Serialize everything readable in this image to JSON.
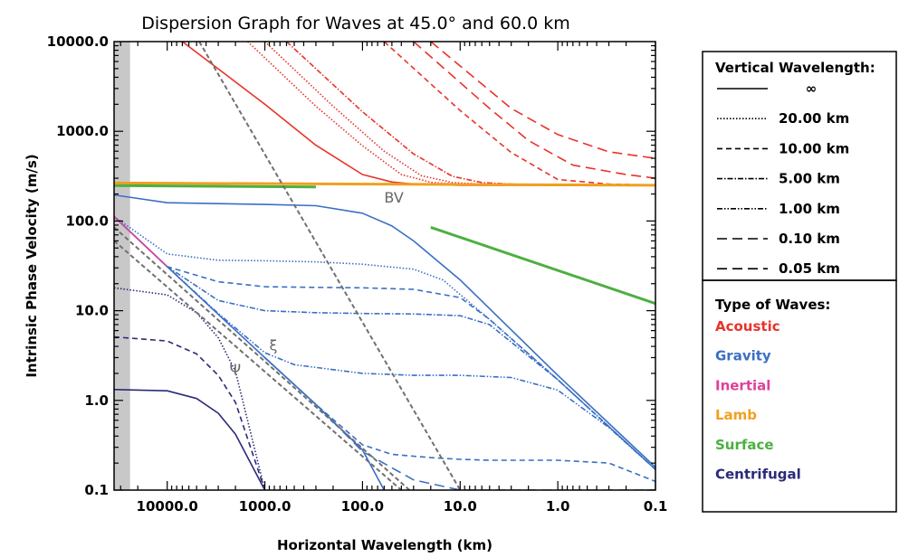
{
  "chart_data": {
    "type": "line",
    "title": "Dispersion Graph for Waves at 45.0° and 60.0 km",
    "xlabel": "Horizontal Wavelength (km)",
    "ylabel": "Intrinsic Phase Velocity (m/s)",
    "x_scale": "log",
    "y_scale": "log",
    "x_reversed": true,
    "xlim": [
      35000,
      0.1
    ],
    "ylim": [
      0.1,
      10000
    ],
    "x_ticks": [
      "10000.0",
      "1000.0",
      "100.0",
      "10.0",
      "1.0",
      "0.1"
    ],
    "x_tick_values": [
      10000,
      1000,
      100,
      10,
      1,
      0.1
    ],
    "y_ticks": [
      "10000.0",
      "1000.0",
      "100.0",
      "10.0",
      "1.0",
      "0.1"
    ],
    "y_tick_values": [
      10000,
      1000,
      100,
      10,
      1,
      0.1
    ],
    "shaded_x_range": [
      35000,
      24000
    ],
    "colors": {
      "acoustic": "#e8332a",
      "gravity": "#3a6fc4",
      "inertial": "#e0409a",
      "lamb": "#f0a020",
      "surface": "#4cb040",
      "centrifugal": "#2a2a78",
      "reference": "#707070",
      "shade": "#c8c8c8"
    },
    "legend_vertical": {
      "title": "Vertical Wavelength:",
      "entries": [
        {
          "label": "∞",
          "dash": "solid"
        },
        {
          "label": "20.00 km",
          "dash": "dotted"
        },
        {
          "label": "10.00 km",
          "dash": "dashed"
        },
        {
          "label": "5.00 km",
          "dash": "dashdot"
        },
        {
          "label": "1.00 km",
          "dash": "dashdotdot"
        },
        {
          "label": "0.10 km",
          "dash": "longdash"
        },
        {
          "label": "0.05 km",
          "dash": "longdash"
        }
      ]
    },
    "legend_types": {
      "title": "Type of Waves:",
      "entries": [
        {
          "label": "Acoustic",
          "color": "#e8332a"
        },
        {
          "label": "Gravity",
          "color": "#3a6fc4"
        },
        {
          "label": "Inertial",
          "color": "#e0409a"
        },
        {
          "label": "Lamb",
          "color": "#f0a020"
        },
        {
          "label": "Surface",
          "color": "#4cb040"
        },
        {
          "label": "Centrifugal",
          "color": "#2a2a78"
        }
      ]
    },
    "annotations": [
      {
        "text": "BV",
        "x": 60,
        "y": 160
      },
      {
        "text": "ξ",
        "x": 900,
        "y": 3.6
      },
      {
        "text": "Ψ",
        "x": 2300,
        "y": 1.95
      }
    ],
    "series": [
      {
        "type": "acoustic",
        "dash": "solid",
        "x": [
          7000,
          1000,
          300,
          100,
          50,
          30,
          10,
          1,
          0.1
        ],
        "y": [
          10000,
          2000,
          700,
          330,
          272,
          258,
          250,
          250,
          250
        ]
      },
      {
        "type": "acoustic",
        "dash": "dotted",
        "x": [
          1500,
          300,
          100,
          40,
          20,
          10,
          1,
          0.1
        ],
        "y": [
          10000,
          1900,
          690,
          330,
          270,
          256,
          250,
          250
        ]
      },
      {
        "type": "acoustic",
        "dash": "dotted",
        "x": [
          1000,
          200,
          60,
          25,
          12,
          5,
          1,
          0.1
        ],
        "y": [
          10000,
          1900,
          600,
          320,
          268,
          255,
          250,
          250
        ]
      },
      {
        "type": "acoustic",
        "dash": "dashdot",
        "x": [
          600,
          100,
          30,
          12,
          6,
          2,
          0.5,
          0.1
        ],
        "y": [
          10000,
          1650,
          560,
          315,
          268,
          252,
          250,
          250
        ]
      },
      {
        "type": "acoustic",
        "dash": "dashed",
        "x": [
          60,
          10,
          3,
          1,
          0.3,
          0.1
        ],
        "y": [
          10000,
          1700,
          580,
          290,
          258,
          252
        ]
      },
      {
        "type": "acoustic",
        "dash": "longdash",
        "x": [
          30,
          5,
          2,
          0.7,
          0.2,
          0.1
        ],
        "y": [
          10000,
          1800,
          790,
          420,
          330,
          300
        ]
      },
      {
        "type": "acoustic",
        "dash": "longdash",
        "x": [
          20,
          3,
          1,
          0.3,
          0.1
        ],
        "y": [
          10000,
          1800,
          920,
          590,
          500
        ]
      },
      {
        "type": "lamb",
        "dash": "solid",
        "x": [
          35000,
          0.1
        ],
        "y": [
          265,
          250
        ]
      },
      {
        "type": "surface",
        "dash": "solid",
        "x": [
          35000,
          300
        ],
        "y": [
          248,
          240
        ]
      },
      {
        "type": "surface",
        "dash": "solid",
        "x": [
          20,
          0.1
        ],
        "y": [
          85,
          12
        ]
      },
      {
        "type": "gravity",
        "dash": "solid",
        "x": [
          35000,
          10000,
          1000,
          300,
          100,
          50,
          30,
          10,
          1,
          0.1
        ],
        "y": [
          195,
          160,
          153,
          148,
          122,
          88,
          60,
          22,
          1.9,
          0.18
        ]
      },
      {
        "type": "gravity",
        "dash": "solid",
        "x": [
          35000,
          10000,
          3000,
          1000,
          300,
          100,
          60
        ],
        "y": [
          112,
          31,
          9.1,
          3.0,
          0.9,
          0.28,
          0.1
        ]
      },
      {
        "type": "gravity",
        "dash": "dotted",
        "x": [
          35000,
          10000,
          3000,
          1000,
          300,
          100,
          30,
          15,
          5,
          1,
          0.1
        ],
        "y": [
          112,
          43,
          36.5,
          36,
          35,
          33,
          29,
          22,
          8,
          1.7,
          0.17
        ]
      },
      {
        "type": "gravity",
        "dash": "dashed",
        "x": [
          35000,
          10000,
          3000,
          1000,
          300,
          100,
          30,
          10,
          5,
          1,
          0.1
        ],
        "y": [
          112,
          31,
          21,
          18.5,
          18.2,
          18,
          17.3,
          14,
          8,
          1.7,
          0.17
        ]
      },
      {
        "type": "gravity",
        "dash": "dashdot",
        "x": [
          35000,
          10000,
          3000,
          1000,
          300,
          100,
          30,
          10,
          5,
          1,
          0.1
        ],
        "y": [
          112,
          31,
          13,
          10,
          9.5,
          9.3,
          9.2,
          8.8,
          7,
          1.7,
          0.17
        ]
      },
      {
        "type": "gravity",
        "dash": "dashdotdot",
        "x": [
          35000,
          10000,
          3000,
          1000,
          500,
          100,
          30,
          10,
          3,
          1,
          0.3,
          0.1
        ],
        "y": [
          112,
          31,
          9.3,
          3.4,
          2.5,
          2.0,
          1.9,
          1.9,
          1.8,
          1.3,
          0.5,
          0.17
        ]
      },
      {
        "type": "gravity",
        "dash": "dashed",
        "x": [
          1000,
          300,
          100,
          50,
          20,
          10,
          5,
          1,
          0.3,
          0.1
        ],
        "y": [
          3.0,
          0.9,
          0.32,
          0.25,
          0.23,
          0.22,
          0.215,
          0.215,
          0.2,
          0.125
        ]
      },
      {
        "type": "gravity",
        "dash": "longdash",
        "x": [
          1000,
          300,
          100,
          30,
          10,
          3,
          1,
          0.3,
          0.1
        ],
        "y": [
          3.0,
          0.9,
          0.27,
          0.13,
          0.1,
          0.1,
          0.1,
          0.1,
          0.1
        ]
      },
      {
        "type": "inertial",
        "dash": "solid",
        "x": [
          35000,
          10000
        ],
        "y": [
          112,
          31
        ]
      },
      {
        "type": "centrifugal",
        "dash": "solid",
        "x": [
          35000,
          10000,
          5000,
          3000,
          2000,
          1000
        ],
        "y": [
          1.32,
          1.28,
          1.05,
          0.72,
          0.42,
          0.1
        ]
      },
      {
        "type": "centrifugal",
        "dash": "dashed",
        "x": [
          35000,
          10000,
          5000,
          3000,
          2000,
          1000
        ],
        "y": [
          5.1,
          4.6,
          3.3,
          1.9,
          0.95,
          0.1
        ]
      },
      {
        "type": "centrifugal",
        "dash": "dotted",
        "x": [
          35000,
          10000,
          5000,
          3000,
          2000,
          1000
        ],
        "y": [
          18,
          15,
          9.5,
          5.0,
          2.1,
          0.1
        ]
      },
      {
        "type": "reference",
        "dash": "refdash",
        "x": [
          4700,
          10
        ],
        "y": [
          10000,
          0.1
        ]
      },
      {
        "type": "reference",
        "dash": "refdash",
        "x": [
          35000,
          40
        ],
        "y": [
          60,
          0.1
        ]
      },
      {
        "type": "reference",
        "dash": "refdash",
        "x": [
          35000,
          33
        ],
        "y": [
          85,
          0.1
        ]
      }
    ]
  }
}
